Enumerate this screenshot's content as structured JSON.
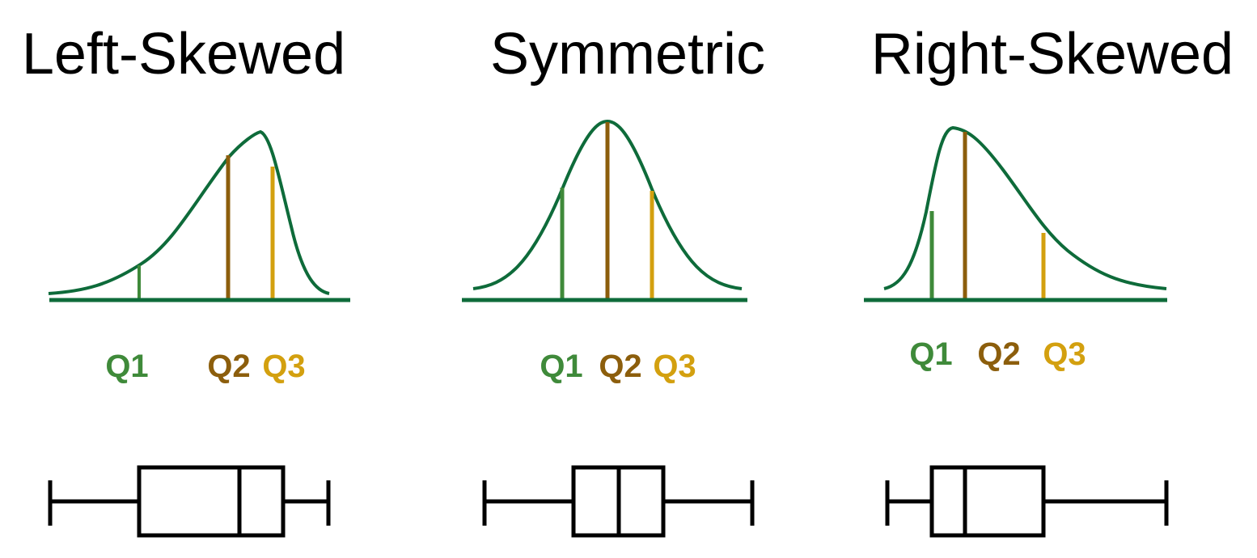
{
  "colors": {
    "curve": "#0e6b3a",
    "baseline": "#0e6b3a",
    "q1": "#3f8a3a",
    "q2": "#8c5e0c",
    "q3": "#d3a00f",
    "box": "#000000"
  },
  "panels": [
    {
      "title": "Left-Skewed",
      "labels": {
        "q1": "Q1",
        "q2": "Q2",
        "q3": "Q3"
      }
    },
    {
      "title": "Symmetric",
      "labels": {
        "q1": "Q1",
        "q2": "Q2",
        "q3": "Q3"
      }
    },
    {
      "title": "Right-Skewed",
      "labels": {
        "q1": "Q1",
        "q2": "Q2",
        "q3": "Q3"
      }
    }
  ]
}
